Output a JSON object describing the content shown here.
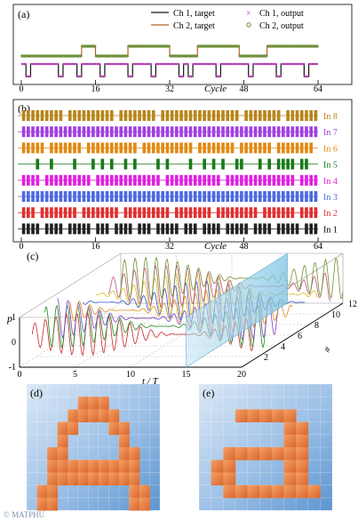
{
  "figure_credit": "© MATPHU",
  "chart_data": [
    {
      "panel_label": "(a)",
      "type": "line",
      "xlabel": "Cycle",
      "x_ticks": [
        0,
        16,
        32,
        48,
        64
      ],
      "xlim": [
        0,
        64
      ],
      "legend": [
        "Ch 1, target",
        "Ch 1, output",
        "Ch 2, target",
        "Ch 2, output"
      ],
      "legend_placement": "top",
      "series": [
        {
          "name": "Ch 1, target",
          "kind": "binary-step",
          "color": "#111111",
          "values": [
            1,
            0,
            1,
            1,
            1,
            1,
            1,
            1,
            0,
            1,
            1,
            1,
            0,
            1,
            1,
            1,
            1,
            0,
            1,
            1,
            1,
            1,
            1,
            0,
            1,
            1,
            1,
            1,
            0,
            1,
            1,
            1,
            1,
            1,
            0,
            1,
            0,
            1,
            1,
            1,
            1,
            1,
            0,
            1,
            1,
            1,
            1,
            1,
            1,
            0,
            1,
            1,
            1,
            1,
            1,
            0,
            1,
            1,
            1,
            1,
            1,
            0,
            1,
            1
          ]
        },
        {
          "name": "Ch 1, output",
          "kind": "markers-x",
          "color": "#cc33cc",
          "values": [
            1,
            0,
            1,
            1,
            1,
            1,
            1,
            1,
            0,
            1,
            1,
            1,
            0,
            1,
            1,
            1,
            1,
            0,
            1,
            1,
            1,
            1,
            1,
            0,
            1,
            1,
            1,
            1,
            0,
            1,
            1,
            1,
            1,
            1,
            0,
            1,
            0,
            1,
            1,
            1,
            1,
            1,
            0,
            1,
            1,
            1,
            1,
            1,
            1,
            0,
            1,
            1,
            1,
            1,
            1,
            0,
            1,
            1,
            1,
            1,
            1,
            0,
            1,
            1
          ]
        },
        {
          "name": "Ch 2, target",
          "kind": "binary-step",
          "color": "#b8602c",
          "values": [
            0,
            0,
            0,
            0,
            0,
            0,
            0,
            0,
            0,
            0,
            0,
            0,
            0,
            1,
            1,
            1,
            0,
            0,
            0,
            0,
            0,
            0,
            0,
            1,
            1,
            1,
            1,
            1,
            1,
            1,
            1,
            1,
            0,
            0,
            0,
            0,
            0,
            0,
            1,
            1,
            1,
            1,
            1,
            1,
            1,
            1,
            1,
            0,
            0,
            0,
            0,
            0,
            0,
            1,
            1,
            1,
            1,
            1,
            1,
            1,
            1,
            1,
            1,
            1
          ]
        },
        {
          "name": "Ch 2, output",
          "kind": "markers-circle",
          "color": "#5a8a2a",
          "values": [
            0,
            0,
            0,
            0,
            0,
            0,
            0,
            0,
            0,
            0,
            0,
            0,
            0,
            1,
            1,
            1,
            0,
            0,
            0,
            0,
            0,
            0,
            0,
            1,
            1,
            1,
            1,
            1,
            1,
            1,
            1,
            1,
            0,
            0,
            0,
            0,
            0,
            0,
            1,
            1,
            1,
            1,
            1,
            1,
            1,
            1,
            1,
            0,
            0,
            0,
            0,
            0,
            0,
            1,
            1,
            1,
            1,
            1,
            1,
            1,
            1,
            1,
            1,
            1
          ]
        }
      ]
    },
    {
      "panel_label": "(b)",
      "type": "heatmap",
      "xlabel": "Cycle",
      "x_ticks": [
        0,
        16,
        32,
        48,
        64
      ],
      "xlim": [
        0,
        64
      ],
      "rows": [
        {
          "name": "In 8",
          "color": "#b8861c",
          "values": [
            1,
            1,
            1,
            1,
            1,
            1,
            1,
            1,
            1,
            0,
            1,
            1,
            1,
            1,
            1,
            1,
            1,
            1,
            1,
            1,
            0,
            1,
            1,
            1,
            1,
            1,
            1,
            1,
            1,
            0,
            1,
            1,
            1,
            1,
            1,
            1,
            1,
            1,
            1,
            1,
            1,
            1,
            1,
            1,
            1,
            1,
            1,
            0,
            1,
            1,
            1,
            1,
            1,
            1,
            1,
            1,
            0,
            1,
            1,
            1,
            1,
            1,
            1,
            1
          ]
        },
        {
          "name": "In 7",
          "color": "#a040e0",
          "values": [
            1,
            1,
            1,
            1,
            1,
            1,
            1,
            1,
            1,
            1,
            1,
            1,
            1,
            1,
            1,
            1,
            1,
            1,
            1,
            1,
            1,
            1,
            1,
            1,
            1,
            1,
            1,
            1,
            1,
            1,
            1,
            1,
            1,
            1,
            1,
            1,
            1,
            1,
            1,
            1,
            1,
            1,
            1,
            1,
            1,
            1,
            1,
            1,
            1,
            1,
            1,
            1,
            1,
            1,
            1,
            1,
            1,
            1,
            1,
            1,
            1,
            1,
            1,
            1
          ]
        },
        {
          "name": "In 6",
          "color": "#e08a14",
          "values": [
            1,
            1,
            1,
            1,
            1,
            0,
            1,
            1,
            1,
            1,
            1,
            1,
            1,
            0,
            1,
            1,
            1,
            1,
            1,
            1,
            1,
            1,
            1,
            1,
            1,
            0,
            1,
            1,
            1,
            1,
            1,
            1,
            1,
            1,
            1,
            1,
            1,
            0,
            1,
            1,
            1,
            1,
            1,
            1,
            1,
            1,
            0,
            1,
            1,
            1,
            1,
            1,
            1,
            1,
            0,
            1,
            1,
            1,
            1,
            1,
            1,
            1,
            1,
            0
          ]
        },
        {
          "name": "In 5",
          "color": "#1a7a1a",
          "values": [
            0,
            0,
            0,
            1,
            0,
            0,
            1,
            0,
            0,
            0,
            0,
            1,
            0,
            0,
            0,
            1,
            0,
            1,
            0,
            1,
            0,
            0,
            1,
            0,
            1,
            0,
            0,
            0,
            0,
            1,
            0,
            1,
            0,
            0,
            0,
            0,
            1,
            0,
            0,
            1,
            0,
            1,
            0,
            1,
            0,
            0,
            1,
            1,
            0,
            0,
            0,
            1,
            0,
            1,
            0,
            1,
            1,
            1,
            1,
            0,
            1,
            1,
            0,
            0
          ]
        },
        {
          "name": "In 4",
          "color": "#e020e0",
          "values": [
            1,
            1,
            1,
            1,
            0,
            1,
            1,
            1,
            1,
            1,
            1,
            1,
            1,
            1,
            1,
            0,
            1,
            1,
            1,
            1,
            1,
            1,
            1,
            1,
            1,
            1,
            1,
            1,
            1,
            1,
            0,
            1,
            1,
            1,
            1,
            1,
            1,
            1,
            1,
            1,
            1,
            1,
            1,
            0,
            1,
            1,
            1,
            1,
            1,
            1,
            1,
            1,
            1,
            1,
            1,
            1,
            1,
            1,
            1,
            0,
            1,
            1,
            1,
            1
          ]
        },
        {
          "name": "In 3",
          "color": "#4c6ae0",
          "values": [
            1,
            1,
            1,
            1,
            1,
            1,
            1,
            1,
            1,
            1,
            1,
            1,
            1,
            1,
            1,
            1,
            1,
            1,
            1,
            1,
            1,
            1,
            1,
            1,
            1,
            1,
            1,
            1,
            1,
            1,
            1,
            1,
            1,
            1,
            1,
            1,
            1,
            1,
            1,
            1,
            1,
            1,
            1,
            1,
            1,
            1,
            1,
            1,
            1,
            1,
            1,
            1,
            1,
            1,
            1,
            1,
            1,
            1,
            1,
            1,
            1,
            1,
            1,
            1
          ]
        },
        {
          "name": "In 2",
          "color": "#e03030",
          "values": [
            1,
            1,
            1,
            0,
            1,
            1,
            1,
            1,
            1,
            1,
            1,
            1,
            0,
            1,
            1,
            1,
            1,
            1,
            1,
            1,
            1,
            0,
            1,
            1,
            1,
            1,
            1,
            1,
            1,
            1,
            1,
            1,
            0,
            1,
            1,
            1,
            1,
            1,
            1,
            1,
            1,
            0,
            1,
            1,
            1,
            1,
            1,
            1,
            1,
            1,
            1,
            0,
            1,
            1,
            1,
            1,
            1,
            1,
            1,
            0,
            1,
            1,
            1,
            1
          ]
        },
        {
          "name": "In 1",
          "color": "#222222",
          "values": [
            1,
            1,
            1,
            1,
            0,
            1,
            1,
            1,
            1,
            0,
            1,
            1,
            1,
            1,
            1,
            0,
            1,
            1,
            1,
            0,
            1,
            1,
            1,
            1,
            0,
            1,
            1,
            1,
            0,
            1,
            1,
            1,
            1,
            1,
            0,
            1,
            1,
            1,
            0,
            1,
            1,
            1,
            1,
            0,
            1,
            1,
            1,
            1,
            1,
            0,
            1,
            1,
            1,
            1,
            0,
            1,
            1,
            1,
            1,
            1,
            0,
            1,
            1,
            1
          ]
        }
      ]
    },
    {
      "panel_label": "(c)",
      "type": "line",
      "xlabel": "t / T",
      "ylabel": "p",
      "zlabel": "#",
      "x_ticks": [
        0,
        5,
        10,
        15,
        20
      ],
      "y_ticks": [
        1,
        0,
        -1
      ],
      "z_ticks": [
        2,
        4,
        6,
        8,
        10,
        12
      ],
      "xlim": [
        0,
        20
      ],
      "ylim": [
        -1,
        1
      ],
      "series": [
        {
          "color": "#c62828"
        },
        {
          "color": "#1f8a1f"
        },
        {
          "color": "#7e3fc6"
        },
        {
          "color": "#e08a14"
        },
        {
          "color": "#3050d0"
        },
        {
          "color": "#d4c21a"
        },
        {
          "color": "#c0507a"
        },
        {
          "color": "#6f8f2f"
        }
      ]
    },
    {
      "panel_label": "(d)",
      "type": "heatmap",
      "description_letter": "A",
      "grid": [
        [
          0,
          0,
          0,
          0,
          0,
          0,
          0,
          0,
          0,
          0,
          0,
          0,
          0
        ],
        [
          0,
          0,
          0,
          0,
          0,
          1,
          1,
          1,
          0,
          0,
          0,
          0,
          0
        ],
        [
          0,
          0,
          0,
          0,
          1,
          1,
          1,
          1,
          1,
          0,
          0,
          0,
          0
        ],
        [
          0,
          0,
          0,
          1,
          1,
          0,
          0,
          0,
          1,
          1,
          0,
          0,
          0
        ],
        [
          0,
          0,
          0,
          1,
          0,
          0,
          0,
          0,
          0,
          1,
          0,
          0,
          0
        ],
        [
          0,
          0,
          1,
          1,
          0,
          0,
          0,
          0,
          0,
          1,
          1,
          0,
          0
        ],
        [
          0,
          0,
          1,
          1,
          1,
          1,
          1,
          1,
          1,
          1,
          1,
          0,
          0
        ],
        [
          0,
          0,
          1,
          1,
          1,
          1,
          1,
          1,
          1,
          1,
          1,
          0,
          0
        ],
        [
          0,
          1,
          1,
          0,
          0,
          0,
          0,
          0,
          0,
          0,
          1,
          1,
          0
        ],
        [
          0,
          1,
          1,
          0,
          0,
          0,
          0,
          0,
          0,
          0,
          1,
          1,
          0
        ]
      ]
    },
    {
      "panel_label": "(e)",
      "type": "heatmap",
      "description_letter": "a",
      "grid": [
        [
          0,
          0,
          0,
          0,
          0,
          0,
          0,
          0,
          0,
          0,
          0
        ],
        [
          0,
          0,
          0,
          0,
          0,
          0,
          0,
          0,
          0,
          0,
          0
        ],
        [
          0,
          0,
          0,
          1,
          1,
          1,
          1,
          1,
          0,
          0,
          0
        ],
        [
          0,
          0,
          0,
          0,
          0,
          0,
          0,
          1,
          1,
          0,
          0
        ],
        [
          0,
          0,
          0,
          0,
          0,
          0,
          0,
          1,
          1,
          0,
          0
        ],
        [
          0,
          0,
          1,
          1,
          1,
          1,
          1,
          1,
          1,
          0,
          0
        ],
        [
          0,
          1,
          1,
          0,
          0,
          0,
          0,
          1,
          1,
          0,
          0
        ],
        [
          0,
          1,
          1,
          0,
          0,
          0,
          0,
          1,
          1,
          0,
          0
        ],
        [
          0,
          0,
          1,
          1,
          1,
          1,
          1,
          1,
          1,
          1,
          0
        ],
        [
          0,
          0,
          0,
          0,
          0,
          0,
          0,
          0,
          0,
          0,
          0
        ]
      ]
    }
  ]
}
